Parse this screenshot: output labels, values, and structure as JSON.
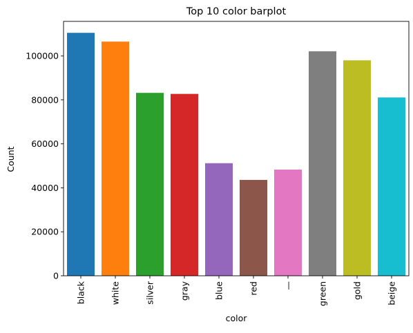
{
  "chart_data": {
    "type": "bar",
    "title": "Top 10 color barplot",
    "xlabel": "color",
    "ylabel": "Count",
    "categories": [
      "black",
      "white",
      "silver",
      "gray",
      "blue",
      "red",
      "—",
      "green",
      "gold",
      "beige"
    ],
    "values": [
      110500,
      106500,
      83200,
      82700,
      51200,
      43600,
      48300,
      102100,
      98000,
      81100
    ],
    "colors": [
      "#1f77b4",
      "#ff7f0e",
      "#2ca02c",
      "#d62728",
      "#9467bd",
      "#8c564b",
      "#e377c2",
      "#7f7f7f",
      "#bcbd22",
      "#17becf"
    ],
    "ylim": [
      0,
      115700
    ],
    "yticks": [
      0,
      20000,
      40000,
      60000,
      80000,
      100000
    ],
    "grid": false,
    "legend": "none"
  }
}
